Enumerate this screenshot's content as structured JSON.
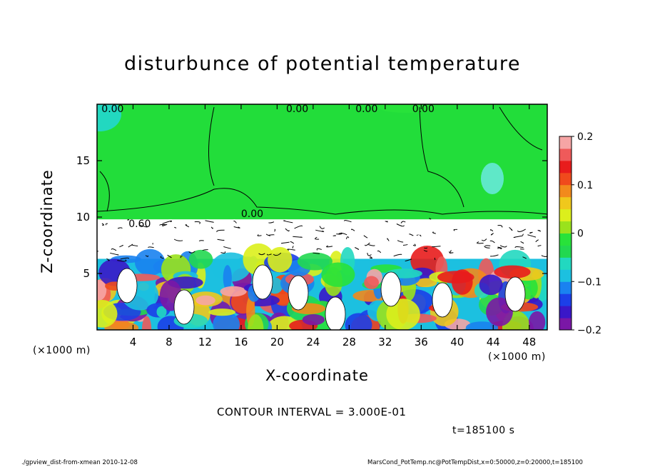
{
  "chart_data": {
    "type": "heatmap",
    "title": "disturbunce of potential temperature",
    "xlabel": "X-coordinate",
    "ylabel": "Z-coordinate",
    "x_unit": "(×1000 m)",
    "y_unit": "(×1000 m)",
    "xlim": [
      0,
      50
    ],
    "ylim": [
      0,
      20
    ],
    "x_ticks": [
      "4",
      "8",
      "12",
      "16",
      "20",
      "24",
      "28",
      "32",
      "36",
      "40",
      "44",
      "48"
    ],
    "y_ticks": [
      "5",
      "10",
      "15"
    ],
    "colorbar": {
      "range": [
        -0.2,
        0.2
      ],
      "ticks": [
        "0.2",
        "0.1",
        "0",
        "−0.1",
        "−0.2"
      ],
      "colors": [
        "#7a17a6",
        "#3a17c8",
        "#1c3fe8",
        "#1a82f0",
        "#1cc0e0",
        "#22d8c0",
        "#22d850",
        "#28e23a",
        "#9ae21c",
        "#dcef1c",
        "#f0c81c",
        "#f28a1c",
        "#f04a1c",
        "#e81c1c",
        "#ef5a5a",
        "#f6a5a5"
      ]
    },
    "contour_labels": [
      "0.00",
      "0.00",
      "0.00",
      "0.00",
      "0.60",
      "0.00"
    ],
    "contour_interval": "CONTOUR INTERVAL = 3.000E-01",
    "time": "t=185100 s"
  },
  "footer": {
    "left": "./gpview_dist-from-xmean  2010-12-08",
    "right": "MarsCond_PotTemp.nc@PotTempDist,x=0:50000,z=0:20000,t=185100"
  }
}
